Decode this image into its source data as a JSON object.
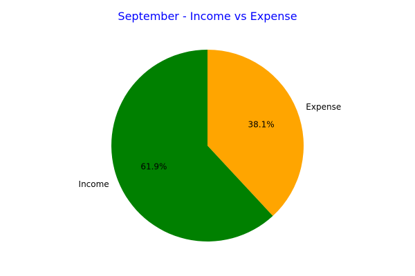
{
  "chart_data": {
    "type": "pie",
    "title": "September - Income vs Expense",
    "title_color": "#0000ff",
    "labels": [
      "Income",
      "Expense"
    ],
    "values": [
      61.9,
      38.1
    ],
    "percent_labels": [
      "61.9%",
      "38.1%"
    ],
    "colors": [
      "#008000",
      "#ffa500"
    ],
    "start_angle_deg": 90,
    "direction": "counterclockwise",
    "legend": "none"
  }
}
